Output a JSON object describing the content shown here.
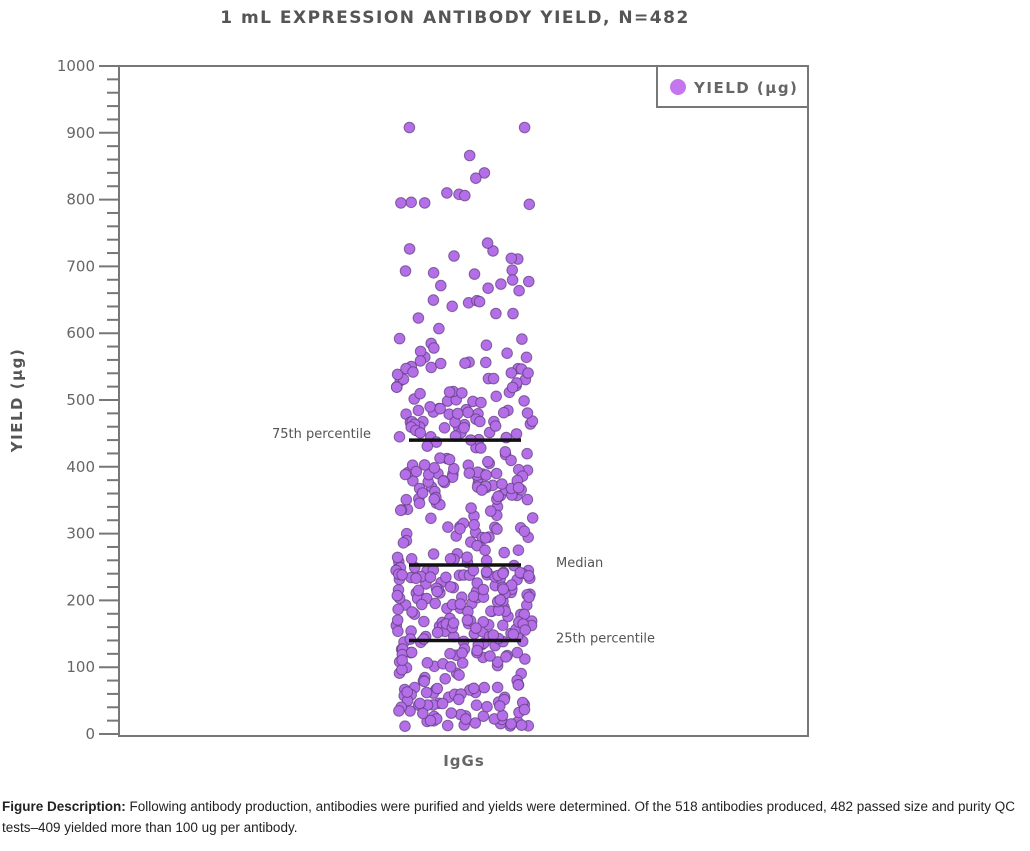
{
  "chart_data": {
    "type": "scatter",
    "subtype": "jittered strip plot",
    "title": "1 mL EXPRESSION ANTIBODY YIELD, N=482",
    "ylabel": "YIELD (µg)",
    "xlabel": "",
    "categories": [
      "IgGs"
    ],
    "ylim": [
      0,
      1000
    ],
    "yticks": [
      0,
      100,
      200,
      300,
      400,
      500,
      600,
      700,
      800,
      900,
      1000
    ],
    "grid": false,
    "legend": {
      "position": "top-right",
      "entries": [
        "YIELD (µg)"
      ]
    },
    "series": [
      {
        "name": "YIELD (µg)",
        "color": "#b46ee8",
        "n": 482,
        "quantiles": [
          [
            0,
            10
          ],
          [
            0.1,
            50
          ],
          [
            0.25,
            140
          ],
          [
            0.5,
            253
          ],
          [
            0.75,
            440
          ],
          [
            0.9,
            560
          ],
          [
            0.97,
            720
          ],
          [
            1,
            908
          ]
        ],
        "high_values": [
          908,
          908,
          866,
          840,
          832,
          810,
          808,
          806,
          796,
          795,
          795,
          793
        ]
      }
    ],
    "reference_lines": [
      {
        "label": "75th percentile",
        "value": 440
      },
      {
        "label": "Median",
        "value": 253
      },
      {
        "label": "25th percentile",
        "value": 140
      }
    ]
  },
  "caption": {
    "lead": "Figure Description:",
    "text": " Following antibody production, antibodies were purified and yields were determined. Of the 518 antibodies produced, 482 passed size and purity QC tests–409 yielded more than 100 ug per antibody."
  }
}
